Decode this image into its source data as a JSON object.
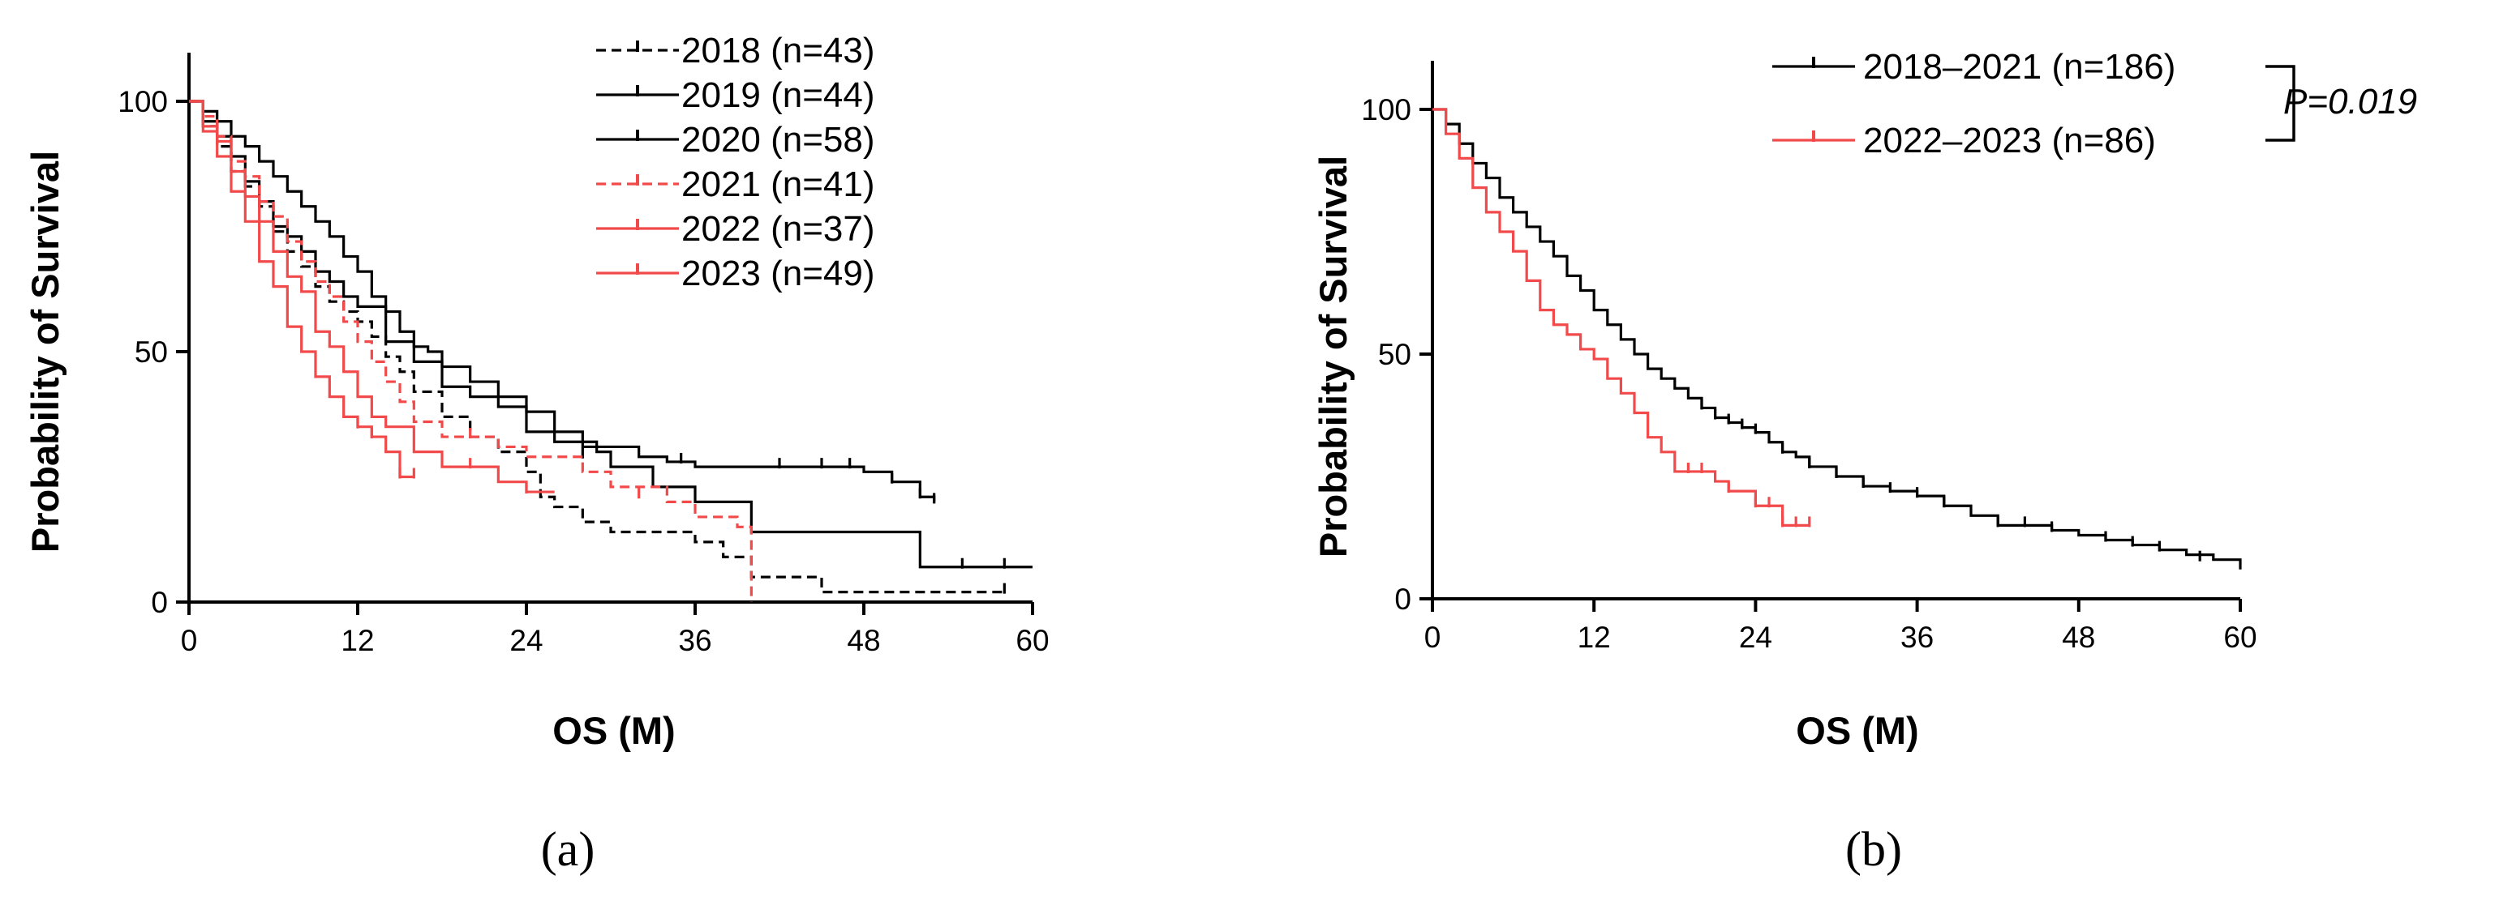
{
  "colors": {
    "black": "#000000",
    "red": "#f24a4a"
  },
  "chart_data": [
    {
      "type": "line",
      "subtype": "kaplan-meier",
      "panel_label": "(a)",
      "xlabel": "OS (M)",
      "ylabel": "Probability of Survival",
      "xlim": [
        0,
        60
      ],
      "ylim": [
        0,
        100
      ],
      "xticks": [
        0,
        12,
        24,
        36,
        48,
        60
      ],
      "yticks": [
        0,
        50,
        100
      ],
      "legend_position": "top-right",
      "series": [
        {
          "name": "2018 (n=43)",
          "color": "#000000",
          "dash": true,
          "x": [
            0,
            1,
            2,
            3,
            4,
            5,
            6,
            7,
            8,
            9,
            10,
            11,
            12,
            13,
            14,
            15,
            16,
            18,
            20,
            22,
            24,
            25,
            26,
            28,
            30,
            33,
            36,
            38,
            40,
            42,
            45,
            48,
            58
          ],
          "y": [
            100,
            95,
            91,
            86,
            83,
            79,
            74,
            70,
            67,
            63,
            60,
            58,
            56,
            53,
            49,
            46,
            42,
            37,
            33,
            30,
            26,
            21,
            19,
            16,
            14,
            14,
            12,
            9,
            5,
            5,
            2,
            2,
            2
          ],
          "censored": [
            [
              58,
              2
            ]
          ]
        },
        {
          "name": "2019 (n=44)",
          "color": "#000000",
          "dash": false,
          "x": [
            0,
            1,
            2,
            3,
            4,
            5,
            6,
            7,
            8,
            9,
            10,
            11,
            12,
            14,
            16,
            18,
            20,
            22,
            24,
            26,
            29,
            30,
            33,
            36,
            40,
            48,
            52,
            55,
            60
          ],
          "y": [
            100,
            96,
            93,
            89,
            84,
            80,
            75,
            73,
            70,
            66,
            64,
            61,
            59,
            52,
            48,
            43,
            41,
            39,
            34,
            32,
            30,
            27,
            23,
            20,
            14,
            14,
            7,
            7,
            7
          ],
          "censored": [
            [
              55,
              7
            ],
            [
              58,
              7
            ]
          ]
        },
        {
          "name": "2020 (n=58)",
          "color": "#000000",
          "dash": false,
          "x": [
            0,
            1,
            2,
            3,
            4,
            5,
            6,
            7,
            8,
            9,
            10,
            11,
            12,
            13,
            14,
            15,
            16,
            17,
            18,
            20,
            22,
            24,
            26,
            28,
            32,
            34,
            36,
            40,
            45,
            48,
            50,
            52,
            53
          ],
          "y": [
            100,
            98,
            96,
            93,
            91,
            88,
            85,
            82,
            79,
            76,
            73,
            69,
            66,
            61,
            58,
            54,
            51,
            50,
            47,
            44,
            41,
            38,
            34,
            31,
            29,
            28,
            27,
            27,
            27,
            26,
            24,
            21,
            20
          ],
          "censored": [
            [
              28,
              29
            ],
            [
              35,
              28
            ],
            [
              42,
              27
            ],
            [
              45,
              27
            ],
            [
              47,
              27
            ],
            [
              50,
              24
            ],
            [
              52,
              21
            ],
            [
              53,
              20
            ]
          ]
        },
        {
          "name": "2021 (n=41)",
          "color": "#f24a4a",
          "dash": true,
          "x": [
            0,
            1,
            2,
            3,
            4,
            5,
            6,
            7,
            8,
            9,
            10,
            11,
            12,
            13,
            14,
            15,
            16,
            18,
            20,
            22,
            24,
            26,
            28,
            30,
            34,
            36,
            39,
            40
          ],
          "y": [
            100,
            97,
            93,
            88,
            85,
            80,
            77,
            72,
            68,
            64,
            61,
            56,
            52,
            48,
            44,
            40,
            36,
            33,
            33,
            31,
            29,
            29,
            26,
            23,
            20,
            17,
            15,
            0
          ],
          "censored": [
            [
              20,
              33
            ],
            [
              32,
              21
            ]
          ]
        },
        {
          "name": "2022 (n=37)",
          "color": "#f24a4a",
          "dash": false,
          "x": [
            0,
            1,
            2,
            3,
            4,
            5,
            6,
            7,
            8,
            9,
            10,
            11,
            12,
            13,
            14,
            16,
            18,
            20,
            22,
            24,
            26
          ],
          "y": [
            100,
            95,
            92,
            86,
            81,
            76,
            70,
            65,
            62,
            54,
            51,
            46,
            41,
            37,
            35,
            30,
            27,
            27,
            24,
            22,
            22
          ],
          "censored": [
            [
              20,
              27
            ],
            [
              24,
              22
            ]
          ]
        },
        {
          "name": "2023 (n=49)",
          "color": "#f24a4a",
          "dash": false,
          "x": [
            0,
            1,
            2,
            3,
            4,
            5,
            6,
            7,
            8,
            9,
            10,
            11,
            12,
            13,
            14,
            15,
            16
          ],
          "y": [
            100,
            94,
            89,
            82,
            76,
            68,
            63,
            55,
            50,
            45,
            41,
            37,
            35,
            33,
            30,
            25,
            25
          ],
          "censored": [
            [
              12,
              35
            ],
            [
              13,
              33
            ],
            [
              15,
              25
            ],
            [
              16,
              25
            ]
          ]
        }
      ]
    },
    {
      "type": "line",
      "subtype": "kaplan-meier",
      "panel_label": "(b)",
      "xlabel": "OS (M)",
      "ylabel": "Probability of Survival",
      "xlim": [
        0,
        60
      ],
      "ylim": [
        0,
        100
      ],
      "xticks": [
        0,
        12,
        24,
        36,
        48,
        60
      ],
      "yticks": [
        0,
        50,
        100
      ],
      "legend_position": "top-right",
      "p_value": "P=0.019",
      "series": [
        {
          "name": "2018–2021 (n=186)",
          "color": "#000000",
          "dash": false,
          "x": [
            0,
            1,
            2,
            3,
            4,
            5,
            6,
            7,
            8,
            9,
            10,
            11,
            12,
            13,
            14,
            15,
            16,
            17,
            18,
            19,
            20,
            21,
            22,
            23,
            24,
            25,
            26,
            27,
            28,
            30,
            32,
            34,
            36,
            38,
            40,
            42,
            44,
            46,
            48,
            50,
            52,
            54,
            56,
            58,
            60
          ],
          "y": [
            100,
            97,
            93,
            89,
            86,
            82,
            79,
            76,
            73,
            70,
            66,
            63,
            59,
            56,
            53,
            50,
            47,
            45,
            43,
            41,
            39,
            37,
            36,
            35,
            34,
            32,
            30,
            29,
            27,
            25,
            23,
            22,
            21,
            19,
            17,
            15,
            15,
            14,
            13,
            12,
            11,
            10,
            9,
            8,
            6
          ],
          "censored": [
            [
              20,
              39
            ],
            [
              21,
              37
            ],
            [
              22,
              36
            ],
            [
              23,
              35
            ],
            [
              24,
              34
            ],
            [
              26,
              30
            ],
            [
              28,
              27
            ],
            [
              30,
              25
            ],
            [
              32,
              23
            ],
            [
              34,
              22
            ],
            [
              36,
              21
            ],
            [
              38,
              19
            ],
            [
              42,
              15
            ],
            [
              44,
              15
            ],
            [
              46,
              14
            ],
            [
              50,
              12
            ],
            [
              52,
              11
            ],
            [
              54,
              10
            ],
            [
              57,
              8
            ]
          ]
        },
        {
          "name": "2022–2023 (n=86)",
          "color": "#f24a4a",
          "dash": false,
          "x": [
            0,
            1,
            2,
            3,
            4,
            5,
            6,
            7,
            8,
            9,
            10,
            11,
            12,
            13,
            14,
            15,
            16,
            17,
            18,
            20,
            21,
            22,
            24,
            25,
            26,
            28
          ],
          "y": [
            100,
            95,
            90,
            84,
            79,
            75,
            71,
            65,
            59,
            56,
            54,
            51,
            49,
            45,
            42,
            38,
            33,
            30,
            26,
            26,
            24,
            22,
            19,
            19,
            15,
            15
          ],
          "censored": [
            [
              19,
              26
            ],
            [
              20,
              26
            ],
            [
              22,
              22
            ],
            [
              24,
              19
            ],
            [
              25,
              19
            ],
            [
              26,
              15
            ],
            [
              27,
              15
            ],
            [
              28,
              15
            ]
          ]
        }
      ]
    }
  ]
}
